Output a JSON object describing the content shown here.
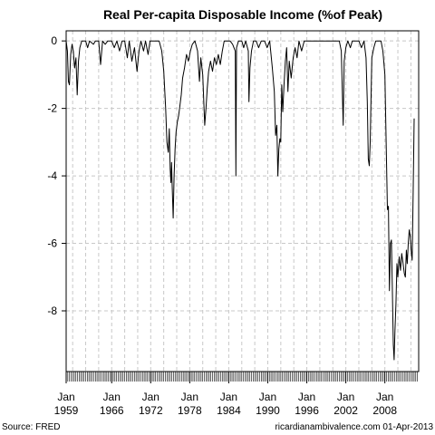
{
  "chart_data": {
    "type": "line",
    "title": "Real Per-capita Disposable Income (%of Peak)",
    "xlabel": "",
    "ylabel": "",
    "xlim": [
      1959.0,
      2013.2
    ],
    "ylim": [
      -9.8,
      0.3
    ],
    "yticks": [
      0,
      -2,
      -4,
      -6,
      -8
    ],
    "xticks": [
      {
        "year": 1959,
        "month": "Jan",
        "label": "1959"
      },
      {
        "year": 1966,
        "month": "Jan",
        "label": "1966"
      },
      {
        "year": 1972,
        "month": "Jan",
        "label": "1972"
      },
      {
        "year": 1978,
        "month": "Jan",
        "label": "1978"
      },
      {
        "year": 1984,
        "month": "Jan",
        "label": "1984"
      },
      {
        "year": 1990,
        "month": "Jan",
        "label": "1990"
      },
      {
        "year": 1996,
        "month": "Jan",
        "label": "1996"
      },
      {
        "year": 2002,
        "month": "Jan",
        "label": "2002"
      },
      {
        "year": 2008,
        "month": "Jan",
        "label": "2008"
      }
    ],
    "grid": true,
    "series": [
      {
        "color": "#000000",
        "points": [
          [
            1959.0,
            0
          ],
          [
            1959.2,
            -0.3
          ],
          [
            1959.35,
            -1.2
          ],
          [
            1959.5,
            -1.3
          ],
          [
            1959.7,
            -0.4
          ],
          [
            1959.9,
            -0.1
          ],
          [
            1960.1,
            -0.3
          ],
          [
            1960.3,
            -0.8
          ],
          [
            1960.5,
            -0.5
          ],
          [
            1960.7,
            -1.6
          ],
          [
            1960.9,
            -0.6
          ],
          [
            1961.1,
            -0.2
          ],
          [
            1961.4,
            0
          ],
          [
            1962.0,
            0
          ],
          [
            1962.3,
            -0.2
          ],
          [
            1962.6,
            0
          ],
          [
            1963.2,
            -0.1
          ],
          [
            1963.5,
            0
          ],
          [
            1964.0,
            0
          ],
          [
            1964.3,
            -0.7
          ],
          [
            1964.6,
            0
          ],
          [
            1965.0,
            -0.1
          ],
          [
            1965.4,
            0
          ],
          [
            1966.0,
            0
          ],
          [
            1966.4,
            -0.2
          ],
          [
            1966.8,
            0
          ],
          [
            1967.2,
            -0.3
          ],
          [
            1967.6,
            0
          ],
          [
            1968.0,
            0
          ],
          [
            1968.4,
            -0.5
          ],
          [
            1968.7,
            0
          ],
          [
            1969.1,
            -0.6
          ],
          [
            1969.5,
            -0.2
          ],
          [
            1969.9,
            -0.9
          ],
          [
            1970.2,
            -0.3
          ],
          [
            1970.5,
            0
          ],
          [
            1970.9,
            -0.3
          ],
          [
            1971.2,
            0
          ],
          [
            1971.6,
            -0.4
          ],
          [
            1971.9,
            0
          ],
          [
            1972.4,
            0
          ],
          [
            1972.8,
            0
          ],
          [
            1973.3,
            0
          ],
          [
            1973.7,
            -0.3
          ],
          [
            1974.0,
            -0.9
          ],
          [
            1974.3,
            -2.0
          ],
          [
            1974.5,
            -3.0
          ],
          [
            1974.7,
            -3.3
          ],
          [
            1974.85,
            -2.6
          ],
          [
            1975.0,
            -3.8
          ],
          [
            1975.1,
            -4.2
          ],
          [
            1975.2,
            -3.6
          ],
          [
            1975.3,
            -4.3
          ],
          [
            1975.45,
            -5.25
          ],
          [
            1975.6,
            -4.0
          ],
          [
            1975.75,
            -3.2
          ],
          [
            1975.9,
            -2.7
          ],
          [
            1976.1,
            -2.4
          ],
          [
            1976.3,
            -2.2
          ],
          [
            1976.5,
            -1.9
          ],
          [
            1976.7,
            -1.6
          ],
          [
            1976.9,
            -1.1
          ],
          [
            1977.2,
            -0.8
          ],
          [
            1977.5,
            -0.4
          ],
          [
            1977.8,
            -0.6
          ],
          [
            1978.1,
            -0.3
          ],
          [
            1978.4,
            -0.1
          ],
          [
            1978.8,
            0
          ],
          [
            1979.2,
            -0.3
          ],
          [
            1979.5,
            -1.2
          ],
          [
            1979.7,
            -0.5
          ],
          [
            1980.0,
            -1.0
          ],
          [
            1980.3,
            -2.5
          ],
          [
            1980.5,
            -2.0
          ],
          [
            1980.7,
            -1.4
          ],
          [
            1980.9,
            -0.9
          ],
          [
            1981.2,
            -0.6
          ],
          [
            1981.5,
            -0.9
          ],
          [
            1981.8,
            -0.5
          ],
          [
            1982.1,
            -0.7
          ],
          [
            1982.4,
            -0.4
          ],
          [
            1982.7,
            -0.7
          ],
          [
            1983.0,
            -0.3
          ],
          [
            1983.3,
            0
          ],
          [
            1983.8,
            0
          ],
          [
            1984.2,
            0
          ],
          [
            1984.6,
            -0.1
          ],
          [
            1985.0,
            -0.3
          ],
          [
            1985.1,
            -4.0
          ],
          [
            1985.2,
            -0.2
          ],
          [
            1985.5,
            0
          ],
          [
            1986.0,
            0
          ],
          [
            1986.3,
            -0.2
          ],
          [
            1986.6,
            0
          ],
          [
            1987.0,
            -0.3
          ],
          [
            1987.1,
            -1.8
          ],
          [
            1987.25,
            -0.8
          ],
          [
            1987.5,
            -0.3
          ],
          [
            1987.8,
            0
          ],
          [
            1988.2,
            0
          ],
          [
            1988.6,
            -0.2
          ],
          [
            1989.0,
            0
          ],
          [
            1989.5,
            0
          ],
          [
            1989.9,
            -0.2
          ],
          [
            1990.3,
            0
          ],
          [
            1990.7,
            -0.8
          ],
          [
            1991.0,
            -1.5
          ],
          [
            1991.2,
            -2.8
          ],
          [
            1991.4,
            -2.5
          ],
          [
            1991.55,
            -4.0
          ],
          [
            1991.7,
            -3.2
          ],
          [
            1991.85,
            -2.9
          ],
          [
            1992.0,
            -3.0
          ],
          [
            1992.15,
            -1.3
          ],
          [
            1992.3,
            -2.1
          ],
          [
            1992.5,
            -1.3
          ],
          [
            1992.7,
            -0.6
          ],
          [
            1992.9,
            -0.2
          ],
          [
            1993.1,
            -1.5
          ],
          [
            1993.3,
            -0.6
          ],
          [
            1993.6,
            -1.1
          ],
          [
            1993.9,
            -0.5
          ],
          [
            1994.2,
            -0.2
          ],
          [
            1994.5,
            -0.5
          ],
          [
            1994.8,
            0
          ],
          [
            1995.2,
            -0.3
          ],
          [
            1995.6,
            0
          ],
          [
            1996.0,
            0
          ],
          [
            1996.4,
            0
          ],
          [
            1996.8,
            0
          ],
          [
            1997.2,
            0
          ],
          [
            1997.6,
            0
          ],
          [
            1998.0,
            0
          ],
          [
            1998.5,
            0
          ],
          [
            1999.0,
            0
          ],
          [
            1999.5,
            0
          ],
          [
            2000.0,
            0
          ],
          [
            2000.5,
            0
          ],
          [
            2001.0,
            0
          ],
          [
            2001.3,
            -0.3
          ],
          [
            2001.6,
            -2.5
          ],
          [
            2001.75,
            -0.6
          ],
          [
            2002.0,
            -0.2
          ],
          [
            2002.3,
            0
          ],
          [
            2002.7,
            -0.2
          ],
          [
            2003.0,
            0
          ],
          [
            2003.5,
            0
          ],
          [
            2004.0,
            0
          ],
          [
            2004.4,
            -0.2
          ],
          [
            2004.8,
            0
          ],
          [
            2005.1,
            -0.5
          ],
          [
            2005.3,
            -1.8
          ],
          [
            2005.45,
            -3.5
          ],
          [
            2005.6,
            -3.7
          ],
          [
            2005.75,
            -3.0
          ],
          [
            2005.85,
            -2.0
          ],
          [
            2006.0,
            -0.5
          ],
          [
            2006.3,
            -0.2
          ],
          [
            2006.6,
            0
          ],
          [
            2007.0,
            0
          ],
          [
            2007.4,
            0
          ],
          [
            2007.7,
            -0.3
          ],
          [
            2008.0,
            -1.0
          ],
          [
            2008.2,
            -3.0
          ],
          [
            2008.4,
            -5.0
          ],
          [
            2008.55,
            -4.9
          ],
          [
            2008.7,
            -7.4
          ],
          [
            2008.85,
            -6.0
          ],
          [
            2009.0,
            -5.9
          ],
          [
            2009.15,
            -7.3
          ],
          [
            2009.3,
            -9.0
          ],
          [
            2009.42,
            -9.45
          ],
          [
            2009.55,
            -8.6
          ],
          [
            2009.7,
            -7.8
          ],
          [
            2009.85,
            -6.6
          ],
          [
            2010.0,
            -7.0
          ],
          [
            2010.2,
            -6.4
          ],
          [
            2010.4,
            -6.8
          ],
          [
            2010.6,
            -6.3
          ],
          [
            2010.8,
            -6.6
          ],
          [
            2011.0,
            -6.9
          ],
          [
            2011.15,
            -7.0
          ],
          [
            2011.3,
            -6.2
          ],
          [
            2011.45,
            -6.6
          ],
          [
            2011.6,
            -6.0
          ],
          [
            2011.75,
            -5.6
          ],
          [
            2011.9,
            -5.8
          ],
          [
            2012.05,
            -6.2
          ],
          [
            2012.2,
            -6.5
          ],
          [
            2012.35,
            -4.5
          ],
          [
            2012.5,
            -2.3
          ]
        ]
      }
    ]
  },
  "footer": {
    "source": "Source: FRED",
    "credit": "ricardianambivalence.com   01-Apr-2013"
  }
}
